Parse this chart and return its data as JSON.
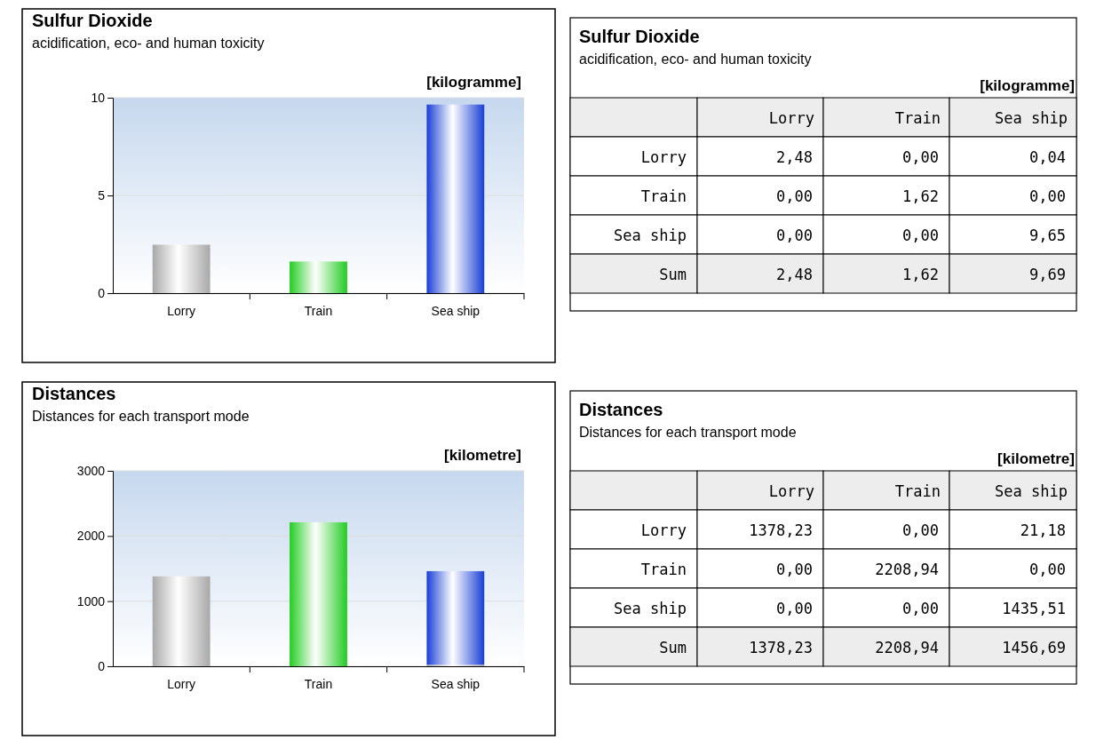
{
  "chart_data": [
    {
      "type": "bar",
      "title": "Sulfur Dioxide",
      "subtitle": "acidification, eco- and human toxicity",
      "ylabel": "[kilogramme]",
      "categories": [
        "Lorry",
        "Train",
        "Sea ship"
      ],
      "stacked": true,
      "ylim": [
        0,
        10
      ],
      "yticks": [
        0,
        5,
        10
      ],
      "grid": "y",
      "legend": false,
      "series": [
        {
          "color": "#a8a8a8",
          "values": [
            2.48,
            0,
            null
          ]
        },
        {
          "color": "#22cc22",
          "values": [
            0,
            1.62,
            0
          ]
        },
        {
          "color": "#1a3fd6",
          "values": [
            0,
            0,
            9.65
          ]
        }
      ]
    },
    {
      "type": "other",
      "title": "Sulfur Dioxide",
      "subtitle": "acidification, eco- and human toxicity",
      "ylabel": "[kilogramme]",
      "categories": [
        "Lorry",
        "Train",
        "Sea ship"
      ],
      "annotations": [
        "Sum"
      ],
      "totals": [
        "2,48",
        "1,62",
        "9,69"
      ],
      "series": [
        {
          "name": "Lorry",
          "values": [
            2.48,
            0,
            0.04
          ],
          "value_labels": [
            "2,48",
            "0,00",
            "0,04"
          ]
        },
        {
          "name": "Train",
          "values": [
            0,
            1.62,
            0
          ],
          "value_labels": [
            "0,00",
            "1,62",
            "0,00"
          ]
        },
        {
          "name": "Sea ship",
          "values": [
            0,
            0,
            9.65
          ],
          "value_labels": [
            "0,00",
            "0,00",
            "9,65"
          ]
        }
      ]
    },
    {
      "type": "bar",
      "title": "Distances",
      "subtitle": "Distances for each transport mode",
      "ylabel": "[kilometre]",
      "categories": [
        "Lorry",
        "Train",
        "Sea ship"
      ],
      "stacked": true,
      "ylim": [
        0,
        3000
      ],
      "yticks": [
        0,
        1000,
        2000,
        3000
      ],
      "grid": "y",
      "legend": false,
      "series": [
        {
          "color": "#a8a8a8",
          "values": [
            1380,
            0,
            20
          ]
        },
        {
          "color": "#22cc22",
          "values": [
            0,
            2210,
            0
          ]
        },
        {
          "color": "#1a3fd6",
          "values": [
            0,
            0,
            1440
          ]
        }
      ]
    },
    {
      "type": "other",
      "title": "Distances",
      "subtitle": "Distances for each transport mode",
      "ylabel": "[kilometre]",
      "categories": [
        "Lorry",
        "Train",
        "Sea ship"
      ],
      "annotations": [
        "Sum"
      ],
      "totals": [
        "1378,23",
        "2208,94",
        "1456,69"
      ],
      "series": [
        {
          "name": "Lorry",
          "values": [
            1378.23,
            0,
            21.18
          ],
          "value_labels": [
            "1378,23",
            "0,00",
            "21,18"
          ]
        },
        {
          "name": "Train",
          "values": [
            0,
            2208.94,
            0
          ],
          "value_labels": [
            "0,00",
            "2208,94",
            "0,00"
          ]
        },
        {
          "name": "Sea ship",
          "values": [
            0,
            0,
            1435.51
          ],
          "value_labels": [
            "0,00",
            "0,00",
            "1435,51"
          ]
        }
      ]
    }
  ]
}
